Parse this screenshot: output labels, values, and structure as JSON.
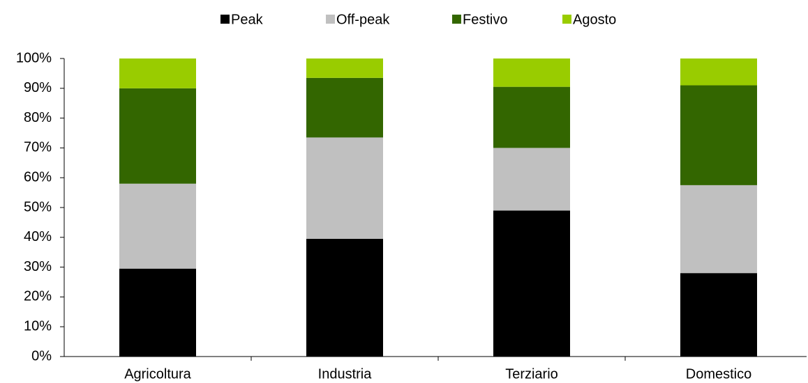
{
  "chart_data": {
    "type": "stacked_bar",
    "categories": [
      "Agricoltura",
      "Industria",
      "Terziario",
      "Domestico"
    ],
    "series": [
      {
        "name": "Peak",
        "color": "#000000",
        "values": [
          29.5,
          39.5,
          49,
          28
        ]
      },
      {
        "name": "Off-peak",
        "color": "#c0c0c0",
        "values": [
          28.5,
          34,
          21,
          29.5
        ]
      },
      {
        "name": "Festivo",
        "color": "#336600",
        "values": [
          32,
          20,
          20.5,
          33.5
        ]
      },
      {
        "name": "Agosto",
        "color": "#99cc00",
        "values": [
          10,
          6.5,
          9.5,
          9
        ]
      }
    ],
    "ylim": [
      0,
      100
    ],
    "yticks": [
      {
        "value": 0,
        "label": "0%"
      },
      {
        "value": 10,
        "label": "10%"
      },
      {
        "value": 20,
        "label": "20%"
      },
      {
        "value": 30,
        "label": "30%"
      },
      {
        "value": 40,
        "label": "40%"
      },
      {
        "value": 50,
        "label": "50%"
      },
      {
        "value": 60,
        "label": "60%"
      },
      {
        "value": 70,
        "label": "70%"
      },
      {
        "value": 80,
        "label": "80%"
      },
      {
        "value": 90,
        "label": "90%"
      },
      {
        "value": 100,
        "label": "100%"
      }
    ],
    "legend": "top"
  }
}
